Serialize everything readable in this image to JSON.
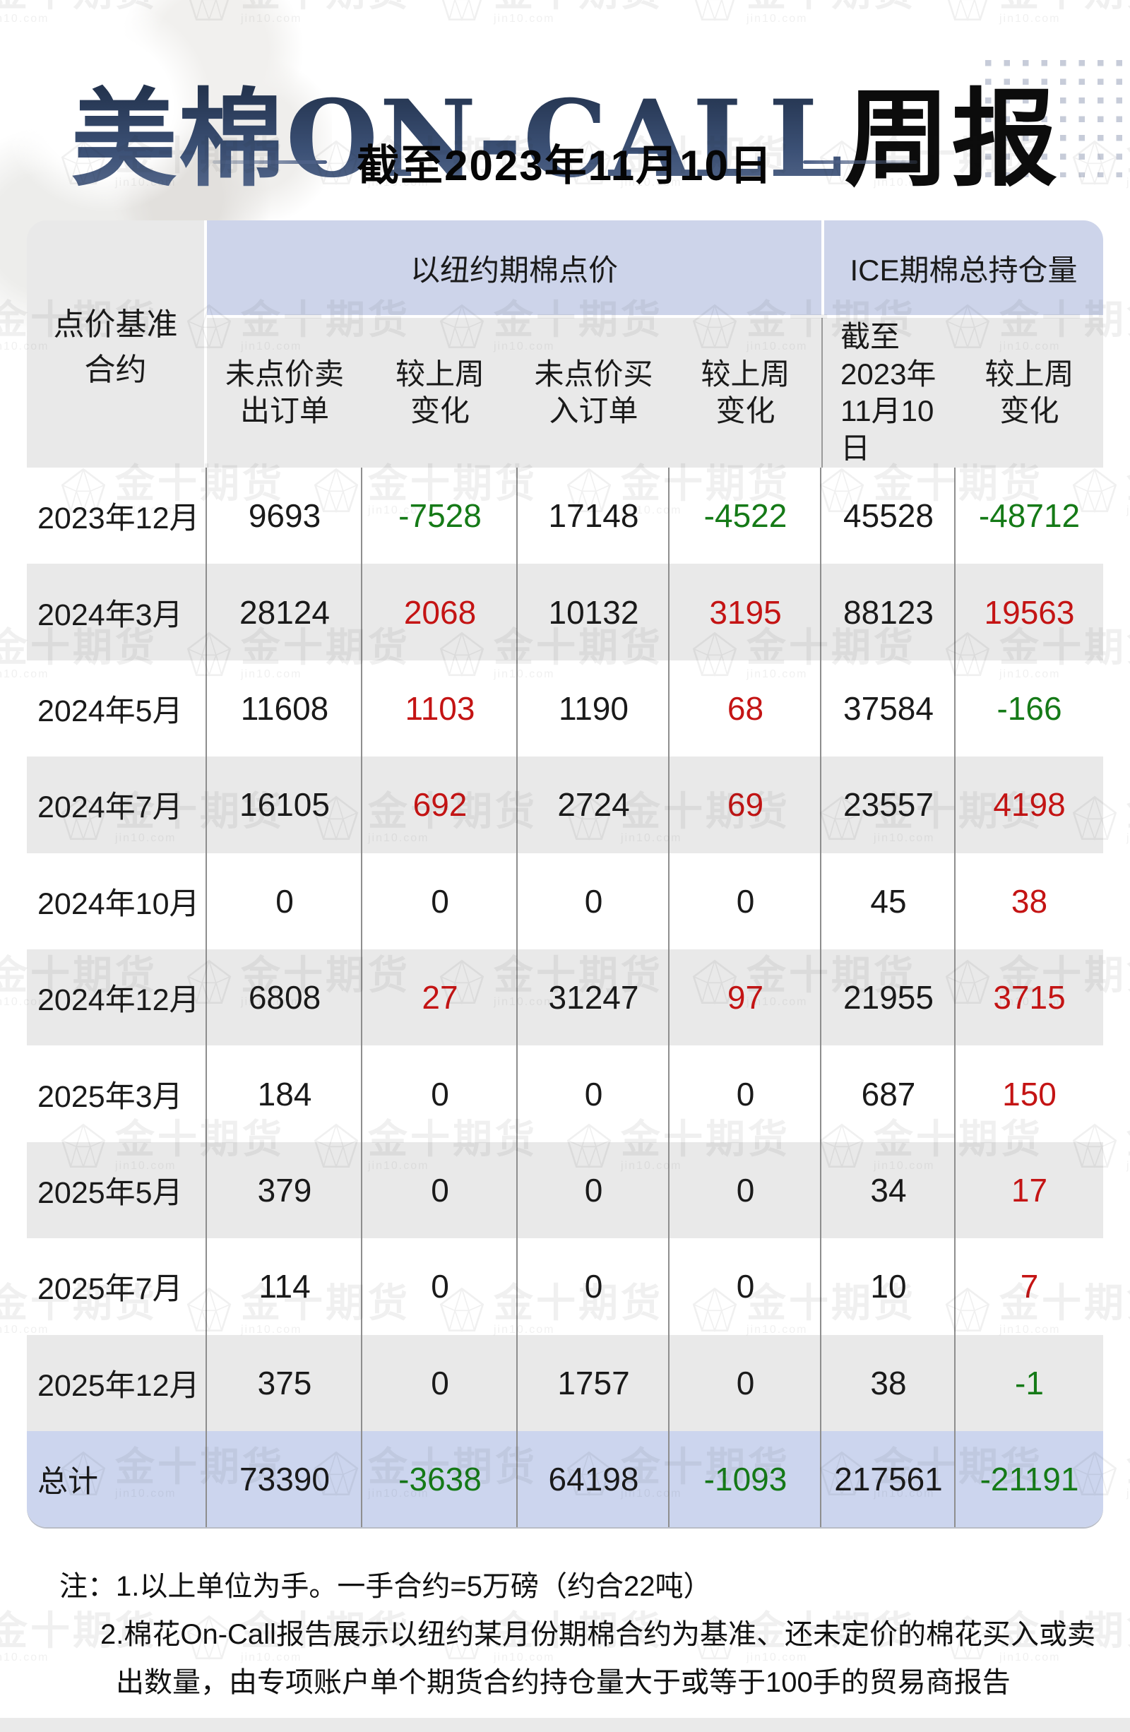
{
  "title": {
    "blue_part": "美棉ON-CALL",
    "black_part": "周报",
    "subtitle": "截至2023年11月10日"
  },
  "watermark": {
    "text": "金十期货",
    "subtext": "jin10.com"
  },
  "table": {
    "corner_header": "点价基准合约",
    "group_headers": [
      "以纽约期棉点价",
      "ICE期棉总持仓量"
    ],
    "sub_headers": [
      "未点价卖出订单",
      "较上周变化",
      "未点价买入订单",
      "较上周变化",
      "截至2023年11月10日",
      "较上周变化"
    ]
  },
  "notes": [
    "注：1.以上单位为手。一手合约=5万磅（约合22吨）",
    "2.棉花On-Call报告展示以纽约某月份期棉合约为基准、还未定价的棉花买入或卖",
    "出数量，由专项账户单个期货合约持仓量大于或等于100手的贸易商报告"
  ],
  "colors": {
    "title-blue-dark": "#24344f",
    "title-blue-light": "#5a6c8e",
    "up-red": "#c41414",
    "down-green": "#157a17",
    "header-blue": "#cdd4ea",
    "total-blue": "#ccd5ee",
    "gray-row": "#e9e9e9",
    "grid-line": "#8e8e8e",
    "text-black": "#1a1a1a",
    "dot-color": "#c5cad7"
  },
  "chart_data": {
    "type": "table",
    "title": "美棉ON-CALL周报",
    "as_of": "截至2023年11月10日",
    "column_groups": [
      "以纽约期棉点价",
      "ICE期棉总持仓量"
    ],
    "columns": [
      "点价基准合约",
      "未点价卖出订单",
      "较上周变化",
      "未点价买入订单",
      "较上周变化",
      "ICE期棉总持仓量(截至2023年11月10日)",
      "较上周变化"
    ],
    "rows": [
      [
        "2023年12月",
        9693,
        -7528,
        17148,
        -4522,
        45528,
        -48712
      ],
      [
        "2024年3月",
        28124,
        2068,
        10132,
        3195,
        88123,
        19563
      ],
      [
        "2024年5月",
        11608,
        1103,
        1190,
        68,
        37584,
        -166
      ],
      [
        "2024年7月",
        16105,
        692,
        2724,
        69,
        23557,
        4198
      ],
      [
        "2024年10月",
        0,
        0,
        0,
        0,
        45,
        38
      ],
      [
        "2024年12月",
        6808,
        27,
        31247,
        97,
        21955,
        3715
      ],
      [
        "2025年3月",
        184,
        0,
        0,
        0,
        687,
        150
      ],
      [
        "2025年5月",
        379,
        0,
        0,
        0,
        34,
        17
      ],
      [
        "2025年7月",
        114,
        0,
        0,
        0,
        10,
        7
      ],
      [
        "2025年12月",
        375,
        0,
        1757,
        0,
        38,
        -1
      ],
      [
        "总计",
        73390,
        -3638,
        64198,
        -1093,
        217561,
        -21191
      ]
    ],
    "color_rule": "change columns (2,4,6): positive=red, negative=green, zero=black"
  }
}
